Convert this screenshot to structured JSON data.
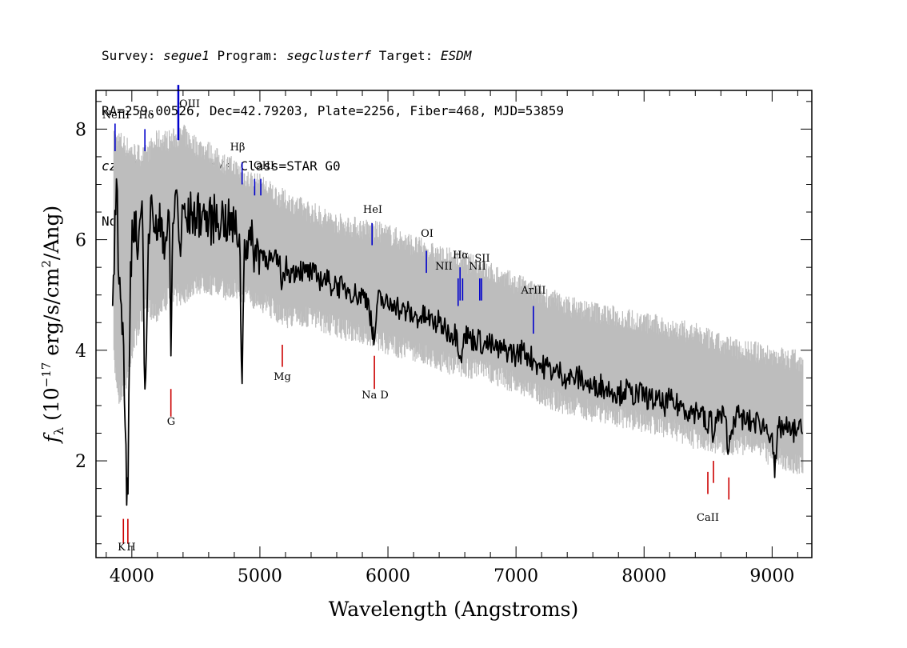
{
  "header": {
    "line1": {
      "survey_label": "Survey: ",
      "survey": "segue1",
      "program_label": " Program: ",
      "program": "segclusterf",
      "target_label": " Target: ",
      "target": "ESDM"
    },
    "line2": "RA=259.00526, Dec=42.79203, Plate=2256, Fiber=468, MJD=53859",
    "line3": {
      "cz": "cz=-257+/-10",
      "rest": " km/s Class=STAR G0"
    },
    "line4": "No warnings."
  },
  "chart_data": {
    "type": "line",
    "xlabel": "Wavelength (Angstroms)",
    "ylabel": "f_λ (10^-17 erg/s/cm^2/Ang)",
    "xlim": [
      3720,
      9310
    ],
    "ylim": [
      0.25,
      8.7
    ],
    "xticks": [
      4000,
      5000,
      6000,
      7000,
      8000,
      9000
    ],
    "yticks": [
      2,
      4,
      6,
      8
    ],
    "grid": false,
    "series": [
      {
        "role": "error-band",
        "color": "#bdbdbd",
        "x": [
          3860,
          3900,
          3950,
          4000,
          4100,
          4200,
          4300,
          4400,
          4500,
          4600,
          4700,
          4800,
          4900,
          5000,
          5200,
          5400,
          5600,
          5800,
          6000,
          6200,
          6400,
          6600,
          6800,
          7000,
          7200,
          7400,
          7600,
          7800,
          8000,
          8200,
          8400,
          8600,
          8800,
          9000,
          9240
        ],
        "lower": [
          4.0,
          3.4,
          3.6,
          4.2,
          5.0,
          4.9,
          5.2,
          5.2,
          5.4,
          5.4,
          5.3,
          5.3,
          5.2,
          5.1,
          4.8,
          4.8,
          4.6,
          4.5,
          4.3,
          4.2,
          4.0,
          3.9,
          3.8,
          3.6,
          3.4,
          3.2,
          3.1,
          3.0,
          2.9,
          2.8,
          2.6,
          2.5,
          2.5,
          2.3,
          2.1
        ],
        "upper": [
          7.6,
          7.6,
          7.5,
          7.4,
          7.3,
          7.6,
          7.6,
          7.7,
          7.5,
          7.4,
          7.2,
          7.1,
          6.9,
          6.8,
          6.5,
          6.3,
          6.1,
          6.0,
          5.9,
          5.7,
          5.5,
          5.4,
          5.2,
          5.0,
          4.8,
          4.6,
          4.5,
          4.4,
          4.3,
          4.2,
          4.1,
          3.9,
          3.8,
          3.7,
          3.6
        ]
      },
      {
        "role": "flux",
        "color": "#000000",
        "x": [
          3850,
          3880,
          3900,
          3930,
          3960,
          3970,
          3990,
          4020,
          4050,
          4080,
          4102,
          4130,
          4160,
          4200,
          4230,
          4260,
          4290,
          4305,
          4320,
          4350,
          4380,
          4400,
          4430,
          4470,
          4500,
          4550,
          4600,
          4650,
          4700,
          4750,
          4800,
          4840,
          4861,
          4880,
          4920,
          4960,
          5000,
          5050,
          5100,
          5150,
          5175,
          5200,
          5250,
          5300,
          5350,
          5400,
          5450,
          5500,
          5550,
          5600,
          5650,
          5700,
          5750,
          5800,
          5850,
          5890,
          5920,
          5960,
          6000,
          6050,
          6100,
          6150,
          6200,
          6250,
          6300,
          6350,
          6400,
          6450,
          6500,
          6540,
          6563,
          6580,
          6600,
          6650,
          6700,
          6750,
          6800,
          6850,
          6900,
          6950,
          7000,
          7050,
          7100,
          7150,
          7200,
          7250,
          7300,
          7350,
          7400,
          7450,
          7500,
          7550,
          7600,
          7650,
          7700,
          7750,
          7800,
          7850,
          7900,
          7950,
          8000,
          8050,
          8100,
          8150,
          8200,
          8250,
          8300,
          8350,
          8400,
          8450,
          8498,
          8520,
          8542,
          8570,
          8600,
          8630,
          8662,
          8700,
          8750,
          8800,
          8850,
          8900,
          8950,
          9000,
          9020,
          9050,
          9100,
          9150,
          9200,
          9240
        ],
        "y": [
          4.8,
          7.1,
          5.2,
          4.5,
          1.2,
          1.4,
          5.6,
          6.5,
          5.8,
          6.7,
          3.3,
          6.1,
          6.6,
          6.0,
          6.4,
          5.9,
          6.5,
          3.9,
          6.3,
          6.9,
          5.7,
          6.6,
          6.3,
          6.5,
          6.4,
          6.5,
          6.3,
          6.4,
          6.4,
          6.3,
          6.2,
          6.1,
          3.4,
          6.0,
          6.0,
          5.8,
          5.8,
          5.7,
          5.6,
          5.6,
          5.2,
          5.5,
          5.4,
          5.5,
          5.4,
          5.4,
          5.3,
          5.3,
          5.2,
          5.2,
          5.1,
          5.1,
          5.0,
          5.0,
          4.9,
          4.1,
          4.9,
          4.9,
          4.8,
          4.9,
          4.7,
          4.7,
          4.6,
          4.6,
          4.6,
          4.5,
          4.5,
          4.4,
          4.3,
          4.3,
          3.9,
          4.0,
          4.3,
          4.2,
          4.2,
          4.1,
          4.1,
          4.0,
          4.0,
          4.0,
          3.9,
          4.0,
          3.9,
          3.8,
          3.7,
          3.7,
          3.6,
          3.6,
          3.5,
          3.5,
          3.5,
          3.4,
          3.3,
          3.4,
          3.3,
          3.3,
          3.2,
          3.3,
          3.2,
          3.2,
          3.2,
          3.1,
          3.1,
          3.0,
          3.1,
          3.0,
          3.0,
          2.9,
          2.9,
          2.9,
          2.5,
          2.9,
          2.4,
          2.8,
          2.8,
          2.8,
          2.2,
          2.8,
          2.8,
          2.7,
          2.7,
          2.7,
          2.6,
          2.5,
          1.7,
          2.6,
          2.6,
          2.5,
          2.6,
          2.5
        ]
      }
    ],
    "emission_lines": [
      {
        "label": "NeIII",
        "x": 3869,
        "color": "#0000cc"
      },
      {
        "label": "Hδ",
        "x": 4102,
        "color": "#0000cc"
      },
      {
        "label": "OIII",
        "x": 4363,
        "color": "#0000cc"
      },
      {
        "label": "Hβ",
        "x": 4861,
        "color": "#0000cc"
      },
      {
        "label": "OIII",
        "x": 4959,
        "color": "#0000cc"
      },
      {
        "label": "OIII",
        "x": 5007,
        "color": "#0000cc"
      },
      {
        "label": "HeI",
        "x": 5876,
        "color": "#0000cc"
      },
      {
        "label": "OI",
        "x": 6300,
        "color": "#0000cc"
      },
      {
        "label": "NII",
        "x": 6548,
        "color": "#0000cc"
      },
      {
        "label": "Hα",
        "x": 6563,
        "color": "#0000cc"
      },
      {
        "label": "NII",
        "x": 6583,
        "color": "#0000cc"
      },
      {
        "label": "SII",
        "x": 6717,
        "color": "#0000cc"
      },
      {
        "label": "SII",
        "x": 6731,
        "color": "#0000cc"
      },
      {
        "label": "ArIII",
        "x": 7136,
        "color": "#0000cc"
      }
    ],
    "absorption_lines": [
      {
        "label": "K",
        "x": 3934,
        "color": "#cc0000"
      },
      {
        "label": "H",
        "x": 3969,
        "color": "#cc0000"
      },
      {
        "label": "G",
        "x": 4305,
        "color": "#cc0000"
      },
      {
        "label": "Mg",
        "x": 5175,
        "color": "#cc0000"
      },
      {
        "label": "Na D",
        "x": 5894,
        "color": "#cc0000"
      },
      {
        "label": "CaII",
        "x": 8498,
        "color": "#cc0000"
      },
      {
        "label": "CaII",
        "x": 8542,
        "color": "#cc0000"
      },
      {
        "label": "CaII",
        "x": 8662,
        "color": "#cc0000"
      }
    ]
  }
}
